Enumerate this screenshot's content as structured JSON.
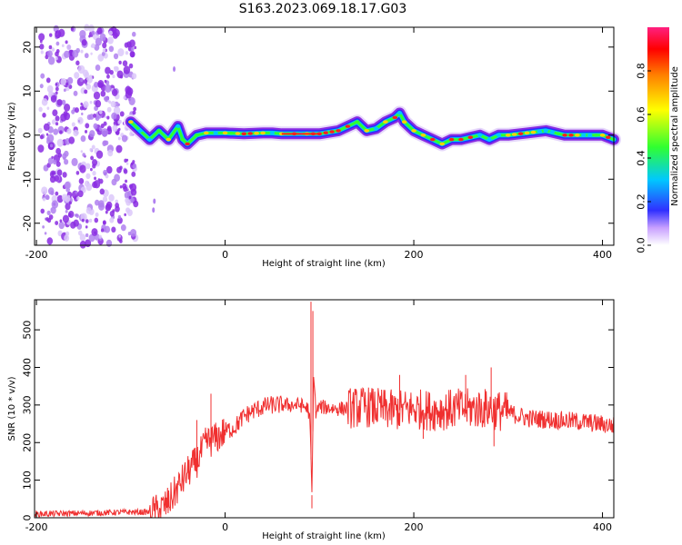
{
  "title": "S163.2023.069.18.17.G03",
  "colors": {
    "snr_line": "#f03030",
    "ridge_cmap": [
      "#ffffff",
      "#8a2be2",
      "#3030ff",
      "#00c8ff",
      "#30ff30",
      "#ffff00",
      "#ff8000",
      "#ff0000"
    ]
  },
  "chart_data": [
    {
      "type": "heatmap",
      "title": "S163.2023.069.18.17.G03",
      "xlabel": "Height of straight line (km)",
      "ylabel": "Frequency (Hz)",
      "xlim": [
        -202,
        412
      ],
      "ylim": [
        -25,
        24.5
      ],
      "xticks": [
        "-200",
        "0",
        "200",
        "400"
      ],
      "yticks": [
        "-20",
        "-10",
        "0",
        "10",
        "20"
      ],
      "colorbar": {
        "label": "Normalized spectral amplitude",
        "range": [
          0,
          1
        ],
        "ticks": [
          "0.0",
          "0.2",
          "0.4",
          "0.6",
          "0.8"
        ]
      },
      "noise_region": {
        "x": [
          -202,
          -100
        ],
        "description_level": 0.35
      },
      "ridge": {
        "x": [
          -100,
          -90,
          -80,
          -70,
          -60,
          -50,
          -45,
          -40,
          -30,
          -20,
          -10,
          0,
          20,
          40,
          50,
          60,
          80,
          100,
          120,
          130,
          140,
          150,
          160,
          170,
          180,
          185,
          190,
          200,
          210,
          220,
          230,
          240,
          250,
          260,
          270,
          280,
          290,
          300,
          320,
          340,
          360,
          380,
          400,
          412
        ],
        "y": [
          3,
          1,
          -1,
          1,
          -1,
          2,
          -1,
          -2,
          0,
          0.5,
          0.5,
          0.5,
          0.3,
          0.5,
          0.5,
          0.3,
          0.3,
          0.3,
          1,
          2,
          3,
          1,
          1.5,
          3,
          4,
          5,
          3,
          1,
          0,
          -1,
          -2,
          -1,
          -1,
          -0.5,
          0,
          -1,
          0,
          0,
          0.5,
          1,
          0,
          0,
          0,
          -1
        ]
      }
    },
    {
      "type": "line",
      "xlabel": "Height of straight line (km)",
      "ylabel": "SNR (10 * v/v)",
      "xlim": [
        -202,
        412
      ],
      "ylim": [
        0,
        580
      ],
      "xticks": [
        "-200",
        "0",
        "200",
        "400"
      ],
      "yticks": [
        "0",
        "100",
        "200",
        "300",
        "400",
        "500"
      ],
      "series": [
        {
          "x": [
            -202,
            -150,
            -100,
            -80,
            -70,
            -60,
            -50,
            -40,
            -30,
            -20,
            -10,
            0,
            10,
            20,
            30,
            40,
            50,
            60,
            70,
            80,
            88,
            90,
            92,
            94,
            96,
            100,
            120,
            150,
            180,
            200,
            220,
            250,
            280,
            300,
            320,
            350,
            380,
            412
          ],
          "y": [
            10,
            12,
            15,
            15,
            20,
            40,
            80,
            120,
            150,
            200,
            210,
            230,
            240,
            270,
            285,
            295,
            300,
            300,
            300,
            300,
            290,
            250,
            60,
            400,
            280,
            295,
            290,
            295,
            285,
            290,
            285,
            290,
            290,
            280,
            265,
            260,
            255,
            245
          ],
          "spikes": [
            {
              "x": -30,
              "y": 260
            },
            {
              "x": -15,
              "y": 330
            },
            {
              "x": 92,
              "y": 25
            },
            {
              "x": 91,
              "y": 575
            },
            {
              "x": 93,
              "y": 550
            },
            {
              "x": 185,
              "y": 380
            },
            {
              "x": 210,
              "y": 210
            },
            {
              "x": 255,
              "y": 380
            },
            {
              "x": 282,
              "y": 400
            },
            {
              "x": 285,
              "y": 190
            }
          ]
        }
      ]
    }
  ]
}
